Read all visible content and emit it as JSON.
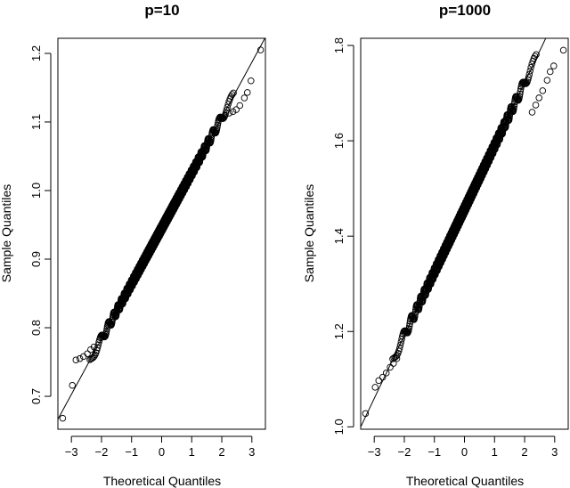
{
  "chart_data": [
    {
      "type": "scatter",
      "subtype": "qq-plot",
      "title": "p=10",
      "xlabel": "Theoretical Quantiles",
      "ylabel": "Sample Quantiles",
      "xlim": [
        -3.45,
        3.45
      ],
      "ylim": [
        0.652,
        1.222
      ],
      "xticks": [
        -3,
        -2,
        -1,
        0,
        1,
        2,
        3
      ],
      "xtick_labels": [
        "−3",
        "−2",
        "−1",
        "0",
        "1",
        "2",
        "3"
      ],
      "yticks": [
        0.7,
        0.8,
        0.9,
        1.0,
        1.1,
        1.2
      ],
      "ytick_labels": [
        "0.7",
        "0.8",
        "0.9",
        "1.0",
        "1.1",
        "1.2"
      ],
      "reference_line": {
        "intercept": 0.945,
        "slope": 0.0807
      },
      "n_points": 1000,
      "x_range": [
        -3.29,
        3.29
      ],
      "tail_points": [
        [
          -3.29,
          0.668
        ],
        [
          -2.97,
          0.716
        ],
        [
          -2.85,
          0.753
        ],
        [
          -2.72,
          0.755
        ],
        [
          -2.6,
          0.758
        ],
        [
          -2.47,
          0.762
        ],
        [
          -2.36,
          0.768
        ],
        [
          -2.25,
          0.772
        ],
        [
          2.25,
          1.113
        ],
        [
          2.37,
          1.115
        ],
        [
          2.48,
          1.118
        ],
        [
          2.6,
          1.124
        ],
        [
          2.75,
          1.135
        ],
        [
          2.85,
          1.143
        ],
        [
          2.97,
          1.16
        ],
        [
          3.29,
          1.205
        ]
      ],
      "point_style": "open-circle",
      "color": "#000000"
    },
    {
      "type": "scatter",
      "subtype": "qq-plot",
      "title": "p=1000",
      "xlabel": "Theoretical Quantiles",
      "ylabel": "Sample Quantiles",
      "xlim": [
        -3.45,
        3.45
      ],
      "ylim": [
        0.995,
        1.815
      ],
      "xticks": [
        -3,
        -2,
        -1,
        0,
        1,
        2,
        3
      ],
      "xtick_labels": [
        "−3",
        "−2",
        "−1",
        "0",
        "1",
        "2",
        "3"
      ],
      "yticks": [
        1.0,
        1.2,
        1.4,
        1.6,
        1.8
      ],
      "ytick_labels": [
        "1.0",
        "1.2",
        "1.4",
        "1.6",
        "1.8"
      ],
      "reference_line": {
        "intercept": 1.457,
        "slope": 0.1325
      },
      "n_points": 1000,
      "x_range": [
        -3.29,
        3.29
      ],
      "tail_points": [
        [
          -3.29,
          1.028
        ],
        [
          -2.97,
          1.083
        ],
        [
          -2.85,
          1.097
        ],
        [
          -2.72,
          1.104
        ],
        [
          -2.6,
          1.113
        ],
        [
          -2.47,
          1.125
        ],
        [
          -2.36,
          1.133
        ],
        [
          -2.25,
          1.143
        ],
        [
          2.25,
          1.66
        ],
        [
          2.37,
          1.675
        ],
        [
          2.48,
          1.69
        ],
        [
          2.6,
          1.705
        ],
        [
          2.75,
          1.727
        ],
        [
          2.85,
          1.745
        ],
        [
          2.97,
          1.757
        ],
        [
          3.29,
          1.79
        ]
      ],
      "point_style": "open-circle",
      "color": "#000000"
    }
  ]
}
